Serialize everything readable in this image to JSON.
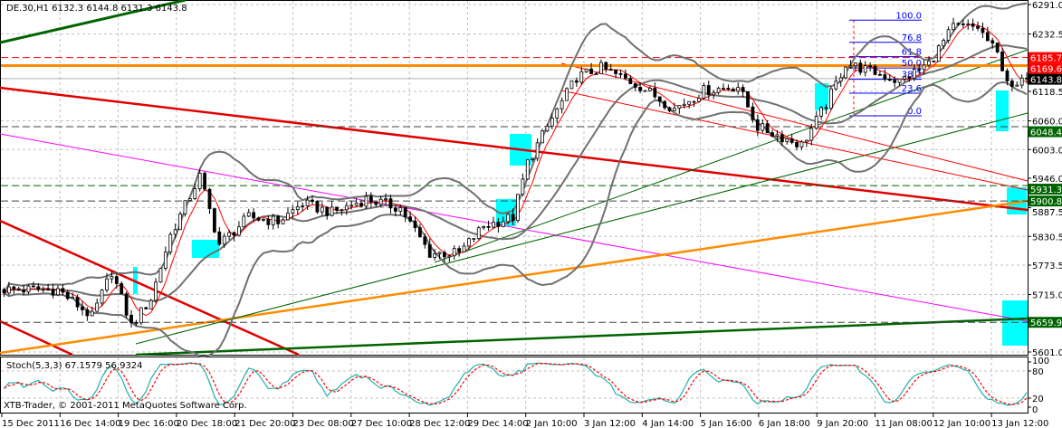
{
  "header": {
    "symbol_line": "DE.30,H1  6132.3 6144.8 6131.3 6143.8"
  },
  "stoch": {
    "label": "Stoch(5,3,3) 67.1579 56.9324",
    "ticks": [
      "100",
      "80",
      "20",
      "0"
    ]
  },
  "copyright": "XTB-Trader, © 2001-2011 MetaQuotes Software Corp.",
  "colors": {
    "background": "#ffffff",
    "grid": "#c0c0c0",
    "candle": "#000000",
    "bollinger": "#707070",
    "ma": "#ff0000",
    "stoch_main": "#20b2aa",
    "stoch_signal": "#ff0000",
    "highlight": "#00ffff",
    "fib": "#0000ff"
  },
  "chart_data": {
    "type": "candlestick",
    "title": "DE.30,H1",
    "y_ticks": [
      "6291.0",
      "6232.5",
      "6118.5",
      "6060.0",
      "6003.0",
      "5946.0",
      "5887.5",
      "5830.5",
      "5773.5",
      "5715.0",
      "5601.0"
    ],
    "ylim": [
      5601.0,
      6291.0
    ],
    "x_ticks": [
      "15 Dec 2011",
      "16 Dec 14:00",
      "19 Dec 16:00",
      "20 Dec 18:00",
      "21 Dec 20:00",
      "23 Dec 08:00",
      "27 Dec 10:00",
      "28 Dec 12:00",
      "29 Dec 14:00",
      "2 Jan 10:00",
      "3 Jan 12:00",
      "4 Jan 14:00",
      "5 Jan 16:00",
      "6 Jan 18:00",
      "9 Jan 20:00",
      "11 Jan 08:00",
      "12 Jan 10:00",
      "13 Jan 12:00"
    ],
    "grid": true,
    "price_path_keypoints": [
      [
        0,
        5725
      ],
      [
        11,
        5725
      ],
      [
        18,
        5671
      ],
      [
        22,
        5761
      ],
      [
        26,
        5653
      ],
      [
        30,
        5707
      ],
      [
        34,
        5833
      ],
      [
        40,
        5950
      ],
      [
        44,
        5815
      ],
      [
        50,
        5869
      ],
      [
        56,
        5860
      ],
      [
        61,
        5896
      ],
      [
        67,
        5878
      ],
      [
        74,
        5905
      ],
      [
        81,
        5887
      ],
      [
        87,
        5797
      ],
      [
        93,
        5797
      ],
      [
        98,
        5851
      ],
      [
        104,
        5869
      ],
      [
        107,
        5977
      ],
      [
        111,
        6048
      ],
      [
        117,
        6147
      ],
      [
        122,
        6165
      ],
      [
        130,
        6129
      ],
      [
        137,
        6084
      ],
      [
        143,
        6120
      ],
      [
        150,
        6129
      ],
      [
        154,
        6048
      ],
      [
        163,
        6012
      ],
      [
        168,
        6093
      ],
      [
        172,
        6174
      ],
      [
        178,
        6156
      ],
      [
        183,
        6138
      ],
      [
        189,
        6174
      ],
      [
        194,
        6246
      ],
      [
        199,
        6246
      ],
      [
        203,
        6192
      ],
      [
        206,
        6120
      ],
      [
        209,
        6143.8
      ]
    ],
    "price_labels": [
      {
        "value": "6185.7",
        "bg": "#ff0000",
        "fg": "#ffffff",
        "style": "dashed",
        "line": "#ff0000"
      },
      {
        "value": "6169.6",
        "bg": "#ff0000",
        "fg": "#ffffff",
        "style": "solid",
        "line": "#ff8c00"
      },
      {
        "value": "6143.8",
        "bg": "#000000",
        "fg": "#ffffff",
        "style": "none",
        "line": "#000000"
      },
      {
        "value": "6048.4",
        "bg": "#006400",
        "fg": "#ffffff",
        "style": "dashed",
        "line": "#404040"
      },
      {
        "value": "5931.3",
        "bg": "#006400",
        "fg": "#ffffff",
        "style": "dashed",
        "line": "#006400"
      },
      {
        "value": "5900.8",
        "bg": "#006400",
        "fg": "#ffffff",
        "style": "dashed",
        "line": "#404040"
      },
      {
        "value": "5659.9",
        "bg": "#006400",
        "fg": "#ffffff",
        "style": "dashed",
        "line": "#404040"
      }
    ],
    "fibonacci": {
      "high": 6260,
      "low": 6070,
      "levels": [
        "100.0",
        "76.8",
        "61.8",
        "50.0",
        "38.2",
        "23.6",
        "0.0"
      ]
    }
  }
}
